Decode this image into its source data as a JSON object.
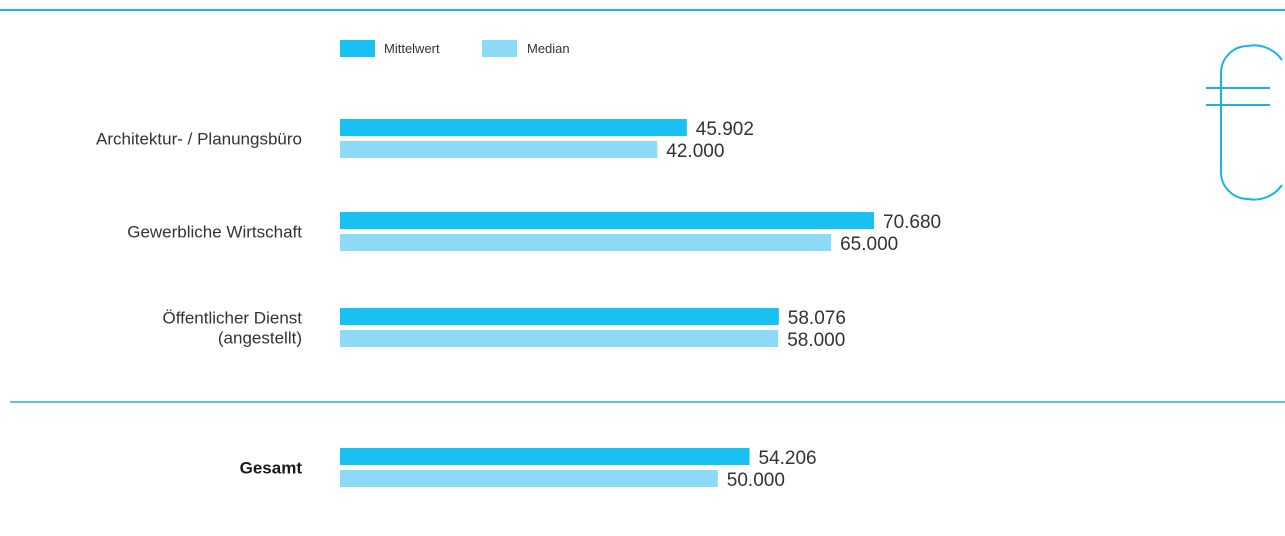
{
  "colors": {
    "mean": "#18c1f1",
    "median": "#8ddaf6",
    "rule": "#18b4e8",
    "icon": "#18b4e8"
  },
  "icon": {
    "name": "euro-icon"
  },
  "chart_data": {
    "type": "bar",
    "orientation": "horizontal",
    "legend": {
      "position": "top-left"
    },
    "grid": false,
    "xlim": [
      0,
      70680
    ],
    "series": [
      {
        "name": "Mittelwert",
        "color": "#18c1f1"
      },
      {
        "name": "Median",
        "color": "#8ddaf6"
      }
    ],
    "groups": [
      {
        "lines": [
          "Architektur- / Planungsbüro"
        ],
        "bold": false,
        "values": [
          45902,
          42000
        ],
        "labels": [
          "45.902",
          "42.000"
        ]
      },
      {
        "lines": [
          "Gewerbliche Wirtschaft"
        ],
        "bold": false,
        "values": [
          70680,
          65000
        ],
        "labels": [
          "70.680",
          "65.000"
        ]
      },
      {
        "lines": [
          "Öffentlicher Dienst",
          "(angestellt)"
        ],
        "bold": false,
        "values": [
          58076,
          58000
        ],
        "labels": [
          "58.076",
          "58.000"
        ]
      },
      {
        "lines": [
          "Gesamt"
        ],
        "bold": true,
        "values": [
          54206,
          50000
        ],
        "labels": [
          "54.206",
          "50.000"
        ]
      }
    ]
  }
}
